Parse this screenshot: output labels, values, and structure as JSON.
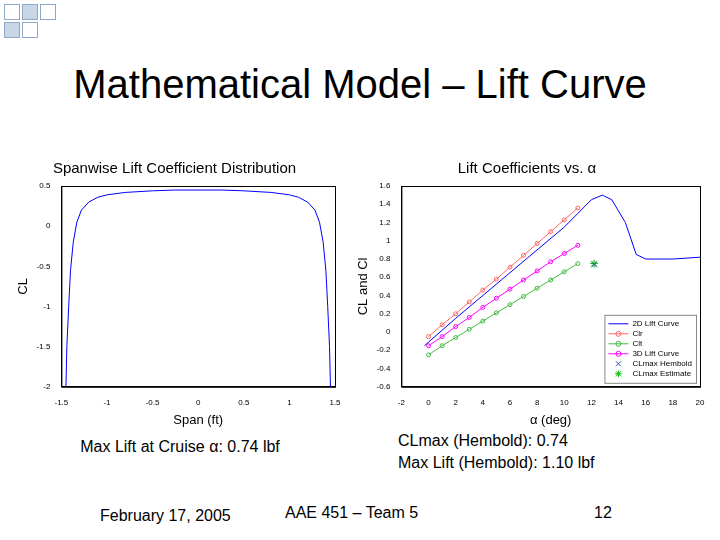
{
  "title": "Mathematical Model – Lift Curve",
  "chart_data": [
    {
      "type": "line",
      "title": "Spanwise Lift Coefficient Distribution",
      "x_label": "Span (ft)",
      "y_label": "CL",
      "x": [
        -1.45,
        -1.44,
        -1.42,
        -1.4,
        -1.37,
        -1.33,
        -1.28,
        -1.2,
        -1.1,
        -1.0,
        -0.8,
        -0.5,
        -0.25,
        0,
        0.25,
        0.5,
        0.8,
        1.0,
        1.1,
        1.2,
        1.28,
        1.33,
        1.37,
        1.4,
        1.42,
        1.44,
        1.45
      ],
      "values": [
        -2,
        -1.5,
        -1,
        -0.55,
        -0.2,
        0.05,
        0.2,
        0.3,
        0.36,
        0.39,
        0.42,
        0.44,
        0.45,
        0.45,
        0.45,
        0.44,
        0.42,
        0.39,
        0.36,
        0.3,
        0.2,
        0.05,
        -0.2,
        -0.55,
        -1,
        -1.5,
        -2
      ],
      "color": "#0000ff",
      "xlim": [
        -1.5,
        1.5
      ],
      "xticks": [
        -1.5,
        -1,
        -0.5,
        0,
        0.5,
        1,
        1.5
      ],
      "ylim": [
        -2,
        0.5
      ],
      "yticks": [
        -2,
        -1.5,
        -1,
        -0.5,
        0,
        0.5
      ],
      "grid": false
    },
    {
      "type": "line",
      "title": "Lift Coefficients vs. α",
      "x_label": "α (deg)",
      "y_label": "CL and Cl",
      "xlim": [
        -2,
        20
      ],
      "xticks": [
        -2,
        0,
        2,
        4,
        6,
        8,
        10,
        12,
        14,
        16,
        18,
        20
      ],
      "ylim": [
        -0.6,
        1.6
      ],
      "yticks": [
        -0.6,
        -0.4,
        -0.2,
        0,
        0.2,
        0.4,
        0.6,
        0.8,
        1,
        1.2,
        1.4,
        1.6
      ],
      "grid": false,
      "legend": "lower right",
      "series": [
        {
          "name": "2D Lift Curve",
          "color": "#0000ff",
          "marker": "none",
          "line_style": "solid",
          "x": [
            -0.3,
            2,
            4,
            6,
            8,
            10,
            11,
            12,
            12.8,
            13.5,
            14.5,
            15.3,
            16,
            18,
            20
          ],
          "values": [
            -0.15,
            0.15,
            0.4,
            0.65,
            0.9,
            1.15,
            1.3,
            1.45,
            1.5,
            1.45,
            1.2,
            0.85,
            0.8,
            0.8,
            0.82
          ]
        },
        {
          "name": "Clr",
          "color": "#ff6666",
          "marker": "circle",
          "line_style": "solid",
          "x": [
            0,
            1,
            2,
            3,
            4,
            5,
            6,
            7,
            8,
            9,
            10,
            11
          ],
          "values": [
            -0.05,
            0.08,
            0.2,
            0.33,
            0.46,
            0.58,
            0.71,
            0.84,
            0.97,
            1.1,
            1.23,
            1.36
          ]
        },
        {
          "name": "Clt",
          "color": "#44bb44",
          "marker": "circle",
          "line_style": "solid",
          "x": [
            0,
            1,
            2,
            3,
            4,
            5,
            6,
            7,
            8,
            9,
            10,
            11
          ],
          "values": [
            -0.25,
            -0.15,
            -0.06,
            0.03,
            0.12,
            0.21,
            0.3,
            0.39,
            0.48,
            0.57,
            0.66,
            0.75
          ]
        },
        {
          "name": "3D Lift Curve",
          "color": "#ff00ff",
          "marker": "circle",
          "line_style": "solid",
          "x": [
            0,
            1,
            2,
            3,
            4,
            5,
            6,
            7,
            8,
            9,
            10,
            11
          ],
          "values": [
            -0.15,
            -0.05,
            0.06,
            0.16,
            0.27,
            0.37,
            0.47,
            0.57,
            0.67,
            0.77,
            0.86,
            0.95
          ]
        },
        {
          "name": "CLmax Hembold",
          "color": "#3355aa",
          "marker": "x",
          "line_style": "none",
          "x": [
            12.2
          ],
          "values": [
            0.74
          ]
        },
        {
          "name": "CLmax Estimate",
          "color": "#00bb00",
          "marker": "star",
          "line_style": "none",
          "x": [
            12.2
          ],
          "values": [
            0.75
          ]
        }
      ]
    }
  ],
  "notes": {
    "left": [
      "Max Lift at Cruise α: 0.74 lbf"
    ],
    "right": [
      "CLmax (Hembold): 0.74",
      "Max Lift (Hembold): 1.10 lbf"
    ]
  },
  "footer": {
    "date": "February 17, 2005",
    "team": "AAE 451 – Team 5",
    "page": "12"
  }
}
